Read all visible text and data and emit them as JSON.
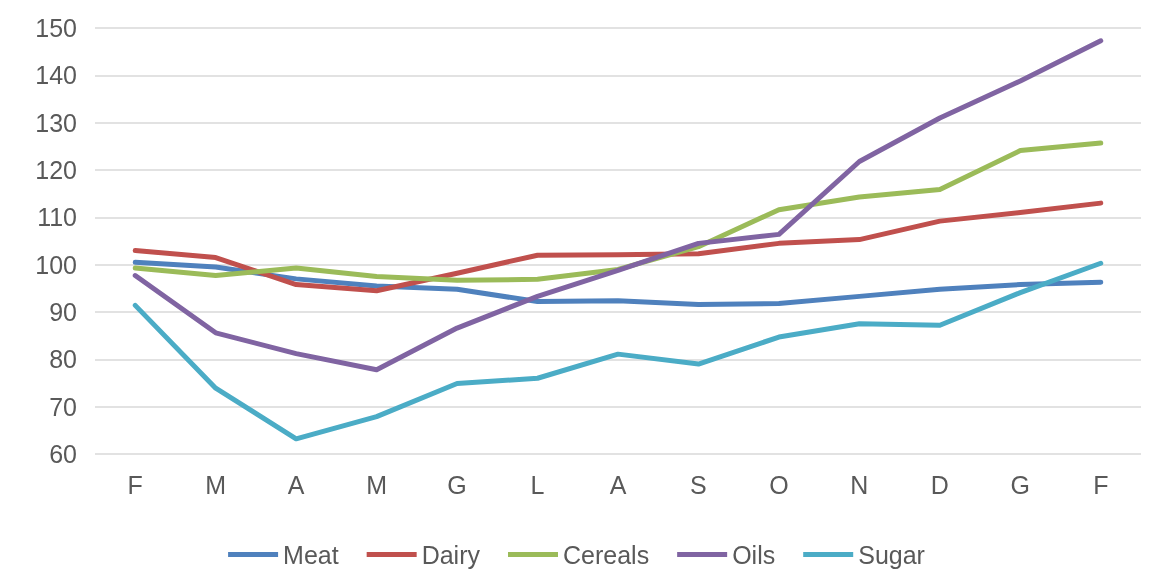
{
  "chart_data": {
    "type": "line",
    "categories": [
      "F",
      "M",
      "A",
      "M",
      "G",
      "L",
      "A",
      "S",
      "O",
      "N",
      "D",
      "G",
      "F"
    ],
    "series": [
      {
        "name": "Meat",
        "color": "#4f81bd",
        "values": [
          100.5,
          99.5,
          97,
          95.5,
          94.8,
          92.2,
          92.4,
          91.6,
          91.8,
          93.3,
          94.8,
          95.8,
          96.3
        ]
      },
      {
        "name": "Dairy",
        "color": "#c0504d",
        "values": [
          103,
          101.5,
          95.8,
          94.5,
          98.2,
          102,
          102.1,
          102.3,
          104.5,
          105.3,
          109.2,
          111,
          113
        ]
      },
      {
        "name": "Cereals",
        "color": "#9bbb59",
        "values": [
          99.3,
          97.7,
          99.3,
          97.5,
          96.7,
          96.9,
          99,
          103.8,
          111.6,
          114.3,
          115.9,
          124.1,
          125.7
        ]
      },
      {
        "name": "Oils",
        "color": "#8064a2",
        "values": [
          97.7,
          85.6,
          81.2,
          77.8,
          86.6,
          93.3,
          98.8,
          104.5,
          106.4,
          121.8,
          131,
          138.8,
          147.3
        ]
      },
      {
        "name": "Sugar",
        "color": "#4bacc6",
        "values": [
          91.4,
          73.9,
          63.2,
          67.9,
          74.9,
          76,
          81.1,
          79,
          84.7,
          87.5,
          87.2,
          94.1,
          100.3
        ]
      }
    ],
    "ylim": [
      60,
      150
    ],
    "yticks": [
      60,
      70,
      80,
      90,
      100,
      110,
      120,
      130,
      140,
      150
    ],
    "grid": "y",
    "legend": "bottom",
    "marker": "none",
    "line_style": "solid"
  }
}
